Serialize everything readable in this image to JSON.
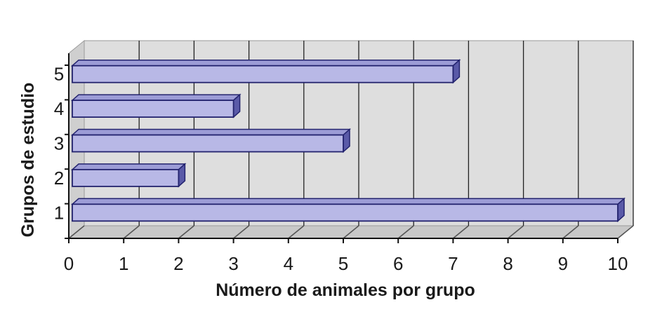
{
  "chart_data": {
    "type": "bar",
    "orientation": "horizontal",
    "categories": [
      "1",
      "2",
      "3",
      "4",
      "5"
    ],
    "values": [
      10,
      2,
      5,
      3,
      7
    ],
    "x_ticks": [
      "0",
      "1",
      "2",
      "3",
      "4",
      "5",
      "6",
      "7",
      "8",
      "9",
      "10"
    ],
    "xlabel": "Número de animales por grupo",
    "ylabel": "Grupos de estudio",
    "xlim": [
      0,
      10
    ],
    "grid": true,
    "legend": "none",
    "style": "3d"
  },
  "colors": {
    "bar_front": "#b8b8e6",
    "bar_top": "#9c9cd6",
    "bar_side": "#5a5aa8",
    "bar_stroke": "#23236e",
    "wall": "#dedede",
    "floor": "#c8c8c8",
    "gridline": "#222222"
  }
}
